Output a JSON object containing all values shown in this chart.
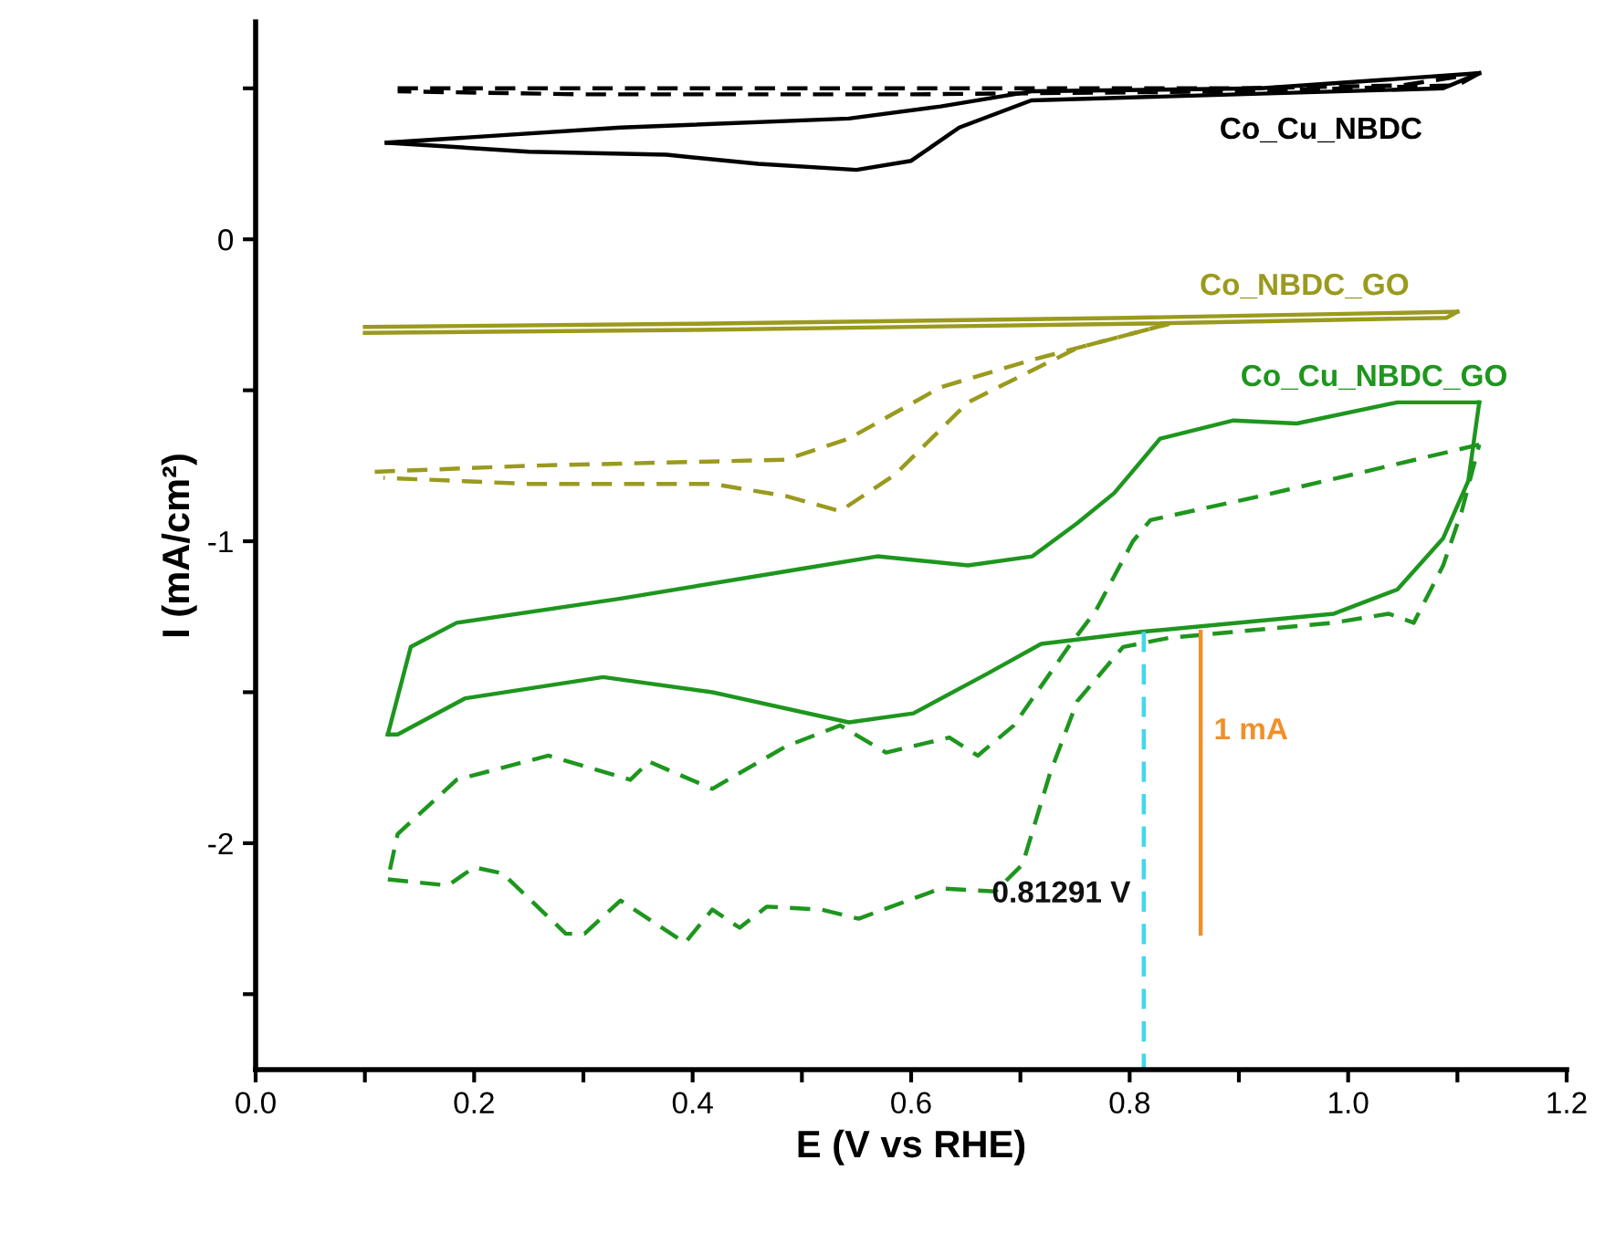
{
  "chart_data": {
    "type": "line",
    "xlabel": "E (V vs RHE)",
    "ylabel": "I (mA/cm²)",
    "xlim": [
      0,
      1.2
    ],
    "ylim": [
      -2.75,
      0.72
    ],
    "xticks": [
      {
        "value": 0,
        "label": "0.0"
      },
      {
        "value": 0.1,
        "label": null
      },
      {
        "value": 0.2,
        "label": "0.2"
      },
      {
        "value": 0.3,
        "label": null
      },
      {
        "value": 0.4,
        "label": "0.4"
      },
      {
        "value": 0.5,
        "label": null
      },
      {
        "value": 0.6,
        "label": "0.6"
      },
      {
        "value": 0.7,
        "label": null
      },
      {
        "value": 0.8,
        "label": "0.8"
      },
      {
        "value": 0.9,
        "label": null
      },
      {
        "value": 1.0,
        "label": "1.0"
      },
      {
        "value": 1.1,
        "label": null
      },
      {
        "value": 1.2,
        "label": "1.2"
      }
    ],
    "yticks": [
      {
        "value": -2.5,
        "label": null
      },
      -2,
      {
        "value": -1.5,
        "label": null
      },
      -1,
      {
        "value": -0.5,
        "label": null
      },
      0,
      {
        "value": 0.5,
        "label": null
      }
    ],
    "grid": false,
    "legend": false,
    "marker": "none",
    "series": [
      {
        "name": "Co_Cu_NBDC",
        "color": "#000000",
        "line_style": "solid",
        "x": [
          0.12,
          0.334,
          0.543,
          0.627,
          0.71,
          0.92,
          1.12
        ],
        "values": [
          0.32,
          0.37,
          0.4,
          0.44,
          0.49,
          0.5,
          0.55
        ]
      },
      {
        "color": "#000000",
        "line_style": "solid",
        "x": [
          1.12,
          1.087,
          0.71,
          0.644,
          0.6,
          0.55,
          0.46,
          0.376,
          0.25,
          0.12
        ],
        "values": [
          0.55,
          0.5,
          0.46,
          0.37,
          0.26,
          0.23,
          0.25,
          0.28,
          0.29,
          0.32
        ]
      },
      {
        "color": "#000000",
        "line_style": "dashed",
        "x": [
          0.13,
          0.4,
          0.7,
          0.9,
          1.05,
          1.12
        ],
        "values": [
          0.5,
          0.5,
          0.5,
          0.5,
          0.51,
          0.55
        ]
      },
      {
        "color": "#000000",
        "line_style": "dashed",
        "x": [
          1.12,
          1.1,
          0.9,
          0.6,
          0.3,
          0.13
        ],
        "values": [
          0.55,
          0.51,
          0.49,
          0.48,
          0.48,
          0.49
        ]
      },
      {
        "name": "Co_NBDC_GO",
        "color": "#9a9a1e",
        "line_style": "solid",
        "x": [
          0.1,
          0.4,
          0.8,
          1.1
        ],
        "values": [
          -0.29,
          -0.28,
          -0.26,
          -0.24
        ]
      },
      {
        "color": "#9a9a1e",
        "line_style": "solid",
        "x": [
          1.1,
          1.09,
          0.8,
          0.4,
          0.1
        ],
        "values": [
          -0.24,
          -0.26,
          -0.28,
          -0.3,
          -0.31
        ]
      },
      {
        "color": "#9a9a1e",
        "line_style": "dashed",
        "x": [
          0.109,
          0.25,
          0.485,
          0.543,
          0.627,
          0.71,
          0.836
        ],
        "values": [
          -0.77,
          -0.75,
          -0.73,
          -0.66,
          -0.49,
          -0.4,
          -0.28
        ]
      },
      {
        "color": "#9a9a1e",
        "line_style": "dashed",
        "x": [
          0.836,
          0.752,
          0.652,
          0.585,
          0.535,
          0.485,
          0.418,
          0.25,
          0.117
        ],
        "values": [
          -0.28,
          -0.36,
          -0.54,
          -0.78,
          -0.9,
          -0.85,
          -0.81,
          -0.81,
          -0.79
        ]
      },
      {
        "name": "Co_Cu_NBDC_GO",
        "color": "#1e961e",
        "line_style": "solid",
        "x": [
          0.121,
          0.13,
          0.192,
          0.318,
          0.418,
          0.543,
          0.602,
          0.669,
          0.719,
          0.811,
          0.987,
          1.045,
          1.087,
          1.11,
          1.12
        ],
        "values": [
          -1.64,
          -1.64,
          -1.52,
          -1.45,
          -1.5,
          -1.6,
          -1.57,
          -1.44,
          -1.34,
          -1.3,
          -1.24,
          -1.16,
          -0.99,
          -0.8,
          -0.54
        ]
      },
      {
        "color": "#1e961e",
        "line_style": "solid",
        "x": [
          1.12,
          1.045,
          0.953,
          0.895,
          0.828,
          0.786,
          0.752,
          0.711,
          0.652,
          0.569,
          0.502,
          0.334,
          0.184,
          0.142,
          0.121
        ],
        "values": [
          -0.54,
          -0.54,
          -0.61,
          -0.6,
          -0.66,
          -0.84,
          -0.94,
          -1.05,
          -1.08,
          -1.05,
          -1.09,
          -1.19,
          -1.27,
          -1.35,
          -1.64
        ]
      },
      {
        "color": "#1e961e",
        "line_style": "dashed",
        "x": [
          1.12,
          1.003,
          0.92,
          0.819,
          0.803,
          0.769,
          0.744,
          0.694,
          0.661,
          0.635,
          0.577,
          0.535,
          0.485,
          0.418,
          0.36,
          0.343,
          0.268,
          0.184,
          0.13,
          0.121
        ],
        "values": [
          -0.68,
          -0.78,
          -0.85,
          -0.93,
          -1.0,
          -1.23,
          -1.35,
          -1.61,
          -1.71,
          -1.65,
          -1.7,
          -1.61,
          -1.68,
          -1.82,
          -1.73,
          -1.79,
          -1.71,
          -1.79,
          -1.97,
          -2.12
        ]
      },
      {
        "color": "#1e961e",
        "line_style": "dashed",
        "x": [
          0.121,
          0.176,
          0.2,
          0.226,
          0.284,
          0.301,
          0.334,
          0.393,
          0.418,
          0.443,
          0.468,
          0.518,
          0.552,
          0.627,
          0.677,
          0.702,
          0.727,
          0.752,
          0.794,
          0.836,
          0.987,
          1.037,
          1.06,
          1.087,
          1.104,
          1.12
        ],
        "values": [
          -2.12,
          -2.14,
          -2.08,
          -2.1,
          -2.3,
          -2.3,
          -2.19,
          -2.33,
          -2.22,
          -2.28,
          -2.21,
          -2.22,
          -2.25,
          -2.15,
          -2.16,
          -2.07,
          -1.77,
          -1.53,
          -1.35,
          -1.32,
          -1.27,
          -1.24,
          -1.27,
          -1.08,
          -0.9,
          -0.68
        ]
      },
      {
        "color": "#40d8ec",
        "line_style": "dashed",
        "x": [
          0.81291,
          0.81291
        ],
        "values": [
          -1.3,
          -2.75
        ]
      },
      {
        "color": "#f0902a",
        "line_style": "solid",
        "x": [
          0.865,
          0.865
        ],
        "values": [
          -1.3,
          -2.3
        ]
      }
    ],
    "annotations": [
      {
        "text": "0.81291 V",
        "x": 0.81291,
        "y": -2.17
      },
      {
        "text": "1 mA",
        "x": 0.865,
        "y": -1.63
      }
    ]
  }
}
